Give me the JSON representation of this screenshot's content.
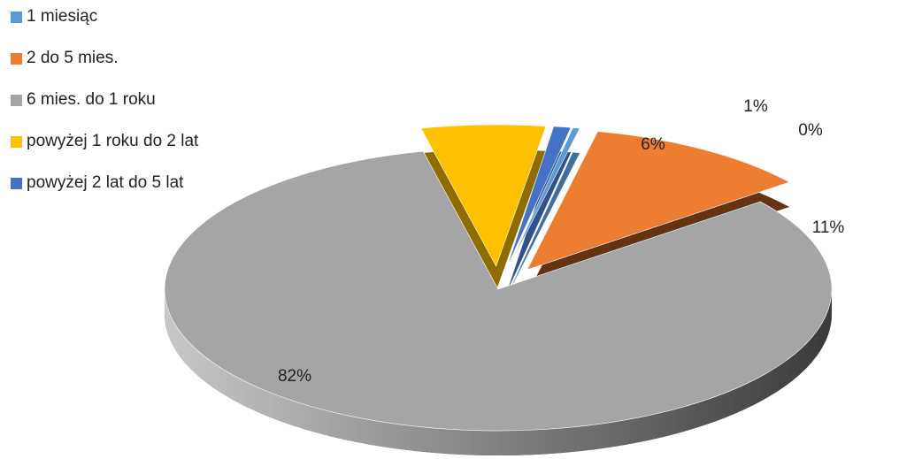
{
  "chart_data": {
    "type": "pie",
    "three_d": true,
    "legend_position": "top-left",
    "categories": [
      "1 miesiąc",
      "2 do 5 mies.",
      "6 mies. do 1 roku",
      "powyżej 1 roku do 2 lat",
      "powyżej 2 lat do 5 lat"
    ],
    "values": [
      0,
      11,
      82,
      6,
      1
    ],
    "value_labels": [
      "0%",
      "11%",
      "82%",
      "6%",
      "1%"
    ],
    "colors": [
      "#5B9BD5",
      "#ED7D31",
      "#A5A5A5",
      "#FFC000",
      "#4472C4"
    ]
  }
}
